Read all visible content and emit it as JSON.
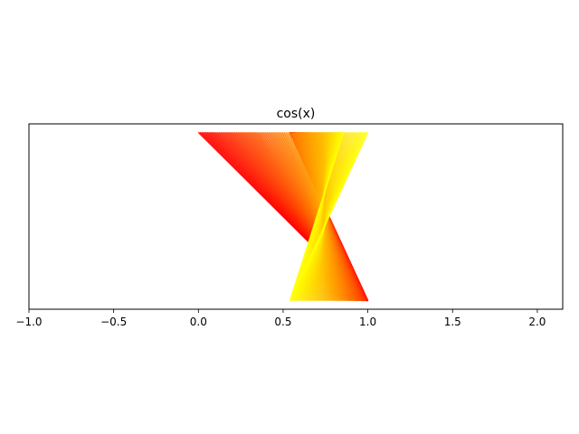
{
  "chart_data": {
    "type": "line",
    "title": "cos(x)",
    "xlabel": "",
    "ylabel": "",
    "xlim": [
      -1.0,
      2.15
    ],
    "ylim": [
      -0.05,
      1.05
    ],
    "grid": false,
    "x_ticks": [
      -1.0,
      -0.5,
      0.0,
      0.5,
      1.0,
      1.5,
      2.0
    ],
    "x_tick_labels": [
      "−1.0",
      "−0.5",
      "0.0",
      "0.5",
      "1.0",
      "1.5",
      "2.0"
    ],
    "y_ticks_visible": false,
    "segments": {
      "description_of_generation": "",
      "count": 100,
      "color_start": "#ff0000",
      "color_end": "#ffff00",
      "x0_start": 0.0,
      "x0_end": 1.0,
      "y_bottom": 0.0,
      "y_top": 1.0
    }
  }
}
